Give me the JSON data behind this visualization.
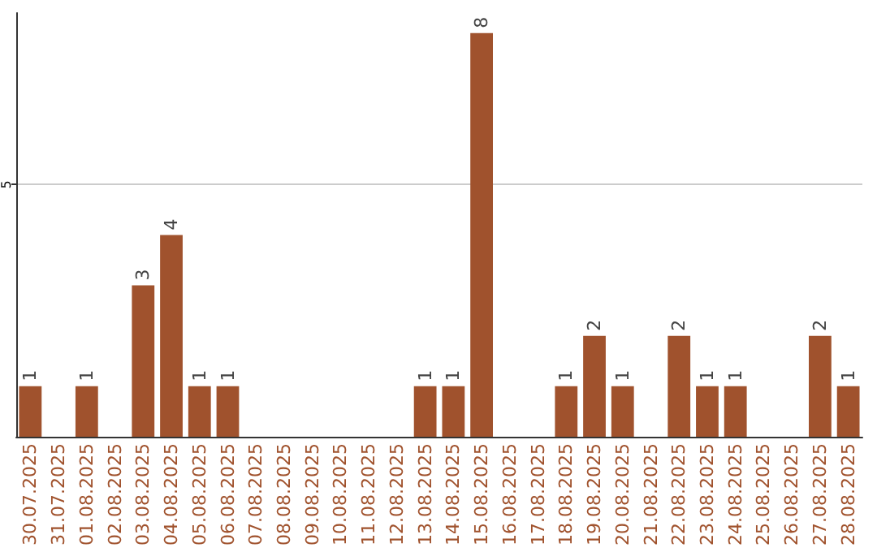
{
  "chart_data": {
    "type": "bar",
    "categories": [
      "30.07.2025",
      "31.07.2025",
      "01.08.2025",
      "02.08.2025",
      "03.08.2025",
      "04.08.2025",
      "05.08.2025",
      "06.08.2025",
      "07.08.2025",
      "08.08.2025",
      "09.08.2025",
      "10.08.2025",
      "11.08.2025",
      "12.08.2025",
      "13.08.2025",
      "14.08.2025",
      "15.08.2025",
      "16.08.2025",
      "17.08.2025",
      "18.08.2025",
      "19.08.2025",
      "20.08.2025",
      "21.08.2025",
      "22.08.2025",
      "23.08.2025",
      "24.08.2025",
      "25.08.2025",
      "26.08.2025",
      "27.08.2025",
      "28.08.2025"
    ],
    "values": [
      1,
      0,
      1,
      0,
      3,
      4,
      1,
      1,
      0,
      0,
      0,
      0,
      0,
      0,
      1,
      1,
      8,
      0,
      0,
      1,
      2,
      1,
      0,
      2,
      1,
      1,
      0,
      0,
      2,
      1
    ],
    "value_labels": [
      "1",
      null,
      "1",
      null,
      "3",
      "4",
      "1",
      "1",
      null,
      null,
      null,
      null,
      null,
      null,
      "1",
      "1",
      "8",
      null,
      null,
      "1",
      "2",
      "1",
      null,
      "2",
      "1",
      "1",
      null,
      null,
      "2",
      "1"
    ],
    "color": "#a0522d",
    "ylim": [
      0,
      8.4
    ],
    "yticks": [
      5
    ],
    "grid": "y"
  }
}
